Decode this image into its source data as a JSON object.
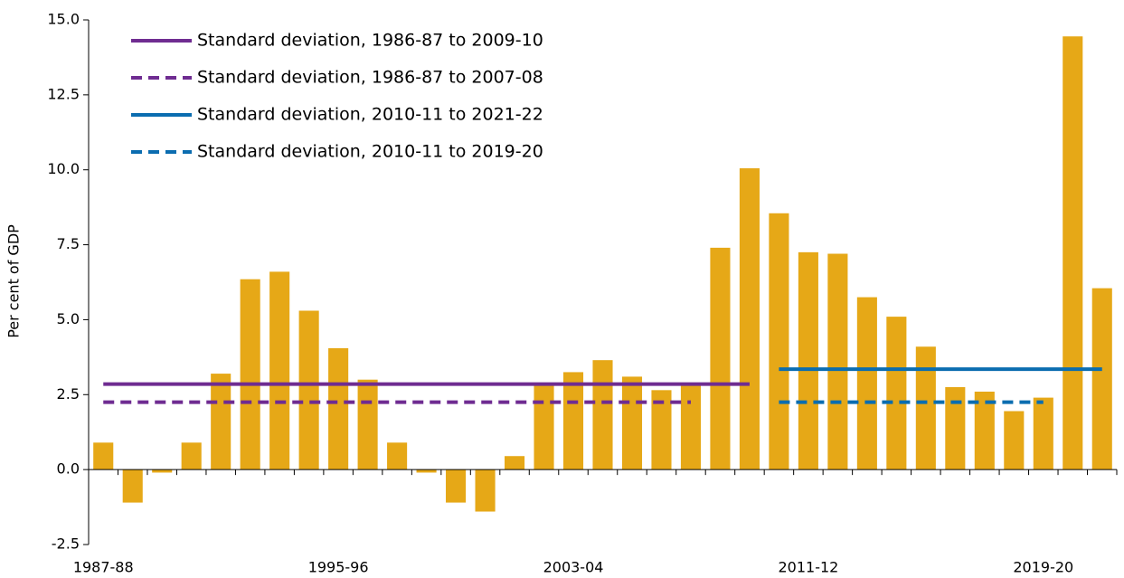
{
  "chart_data": {
    "type": "bar",
    "y_label": "Per cent of GDP",
    "categories": [
      "1987-88",
      null,
      null,
      null,
      null,
      null,
      null,
      null,
      "1995-96",
      null,
      null,
      null,
      null,
      null,
      null,
      null,
      "2003-04",
      null,
      null,
      null,
      null,
      null,
      null,
      null,
      "2011-12",
      null,
      null,
      null,
      null,
      null,
      null,
      null,
      "2019-20",
      null,
      null
    ],
    "values": [
      0.9,
      -1.1,
      -0.1,
      0.9,
      3.2,
      6.35,
      6.6,
      5.3,
      4.05,
      3.0,
      0.9,
      -0.1,
      -1.1,
      -1.4,
      0.45,
      2.8,
      3.25,
      3.65,
      3.1,
      2.65,
      2.8,
      7.4,
      10.05,
      8.55,
      7.25,
      7.2,
      5.75,
      5.1,
      4.1,
      2.75,
      2.6,
      1.95,
      2.4,
      14.45,
      6.05
    ],
    "color": "#e6a817",
    "lines": [
      {
        "name": "Standard deviation, 1986-87 to 2009-10",
        "color": "#6f2c91",
        "dashed": false,
        "values": [
          2.85,
          2.85,
          2.85,
          2.85,
          2.85,
          2.85,
          2.85,
          2.85,
          2.85,
          2.85,
          2.85,
          2.85,
          2.85,
          2.85,
          2.85,
          2.85,
          2.85,
          2.85,
          2.85,
          2.85,
          2.85,
          2.85,
          2.85,
          null,
          null,
          null,
          null,
          null,
          null,
          null,
          null,
          null,
          null,
          null,
          null
        ]
      },
      {
        "name": "Standard deviation, 1986-87 to 2007-08",
        "color": "#6f2c91",
        "dashed": true,
        "values": [
          2.25,
          2.25,
          2.25,
          2.25,
          2.25,
          2.25,
          2.25,
          2.25,
          2.25,
          2.25,
          2.25,
          2.25,
          2.25,
          2.25,
          2.25,
          2.25,
          2.25,
          2.25,
          2.25,
          2.25,
          2.25,
          null,
          null,
          null,
          null,
          null,
          null,
          null,
          null,
          null,
          null,
          null,
          null,
          null,
          null
        ]
      },
      {
        "name": "Standard deviation, 2010-11 to 2021-22",
        "color": "#0b6db0",
        "dashed": false,
        "values": [
          null,
          null,
          null,
          null,
          null,
          null,
          null,
          null,
          null,
          null,
          null,
          null,
          null,
          null,
          null,
          null,
          null,
          null,
          null,
          null,
          null,
          null,
          null,
          3.35,
          3.35,
          3.35,
          3.35,
          3.35,
          3.35,
          3.35,
          3.35,
          3.35,
          3.35,
          3.35,
          3.35
        ]
      },
      {
        "name": "Standard deviation, 2010-11 to 2019-20",
        "color": "#0b6db0",
        "dashed": true,
        "values": [
          null,
          null,
          null,
          null,
          null,
          null,
          null,
          null,
          null,
          null,
          null,
          null,
          null,
          null,
          null,
          null,
          null,
          null,
          null,
          null,
          null,
          null,
          null,
          2.25,
          2.25,
          2.25,
          2.25,
          2.25,
          2.25,
          2.25,
          2.25,
          2.25,
          2.25,
          null,
          null
        ]
      }
    ],
    "ylim": [
      -2.5,
      15
    ],
    "yticks": [
      -2.5,
      {
        "value": 0,
        "label": "0.0"
      },
      2.5,
      {
        "value": 5,
        "label": "5.0"
      },
      7.5,
      {
        "value": 10,
        "label": "10.0"
      },
      12.5,
      {
        "value": 15,
        "label": "15.0"
      }
    ],
    "grid": false,
    "legend": "top-left"
  }
}
